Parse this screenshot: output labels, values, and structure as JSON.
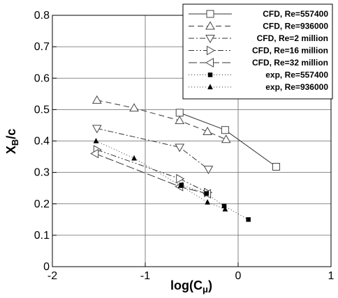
{
  "chart_data": {
    "type": "line",
    "xlabel": "log(C",
    "xlabel_sub": "μ",
    "xlabel_close": ")",
    "ylabel": "X",
    "ylabel_sub": "B",
    "ylabel_rest": "/c",
    "xlim": [
      -2,
      1
    ],
    "ylim": [
      0,
      0.8
    ],
    "xticks": [
      -2,
      -1,
      0,
      1
    ],
    "yticks": [
      0,
      0.1,
      0.2,
      0.3,
      0.4,
      0.5,
      0.6,
      0.7,
      0.8
    ],
    "grid": true,
    "legend_position": "top-right",
    "series": [
      {
        "name": "CFD, Re=557400",
        "marker": "square",
        "dash": "",
        "x": [
          -0.63,
          -0.14,
          0.41
        ],
        "y": [
          0.49,
          0.435,
          0.318
        ]
      },
      {
        "name": "CFD, Re=936000",
        "marker": "triangle-up",
        "dash": "8,5",
        "x": [
          -1.52,
          -1.12,
          -0.63,
          -0.33,
          -0.13
        ],
        "y": [
          0.53,
          0.505,
          0.465,
          0.43,
          0.405
        ]
      },
      {
        "name": "CFD, Re=2 million",
        "marker": "triangle-down",
        "dash": "8,3,2,3",
        "x": [
          -1.52,
          -0.63,
          -0.32
        ],
        "y": [
          0.44,
          0.38,
          0.31
        ]
      },
      {
        "name": "CFD, Re=16 million",
        "marker": "triangle-right",
        "dash": "8,3,2,3,2,3",
        "x": [
          -1.52,
          -0.63,
          -0.33
        ],
        "y": [
          0.372,
          0.28,
          0.236
        ]
      },
      {
        "name": "CFD, Re=32 million",
        "marker": "triangle-left",
        "dash": "12,4",
        "x": [
          -1.54,
          -0.63,
          -0.33
        ],
        "y": [
          0.36,
          0.255,
          0.232
        ]
      },
      {
        "name": "exp, Re=557400",
        "marker": "filled-square",
        "dash": "1,3",
        "x": [
          -0.61,
          -0.34,
          -0.15,
          0.11
        ],
        "y": [
          0.26,
          0.233,
          0.193,
          0.15
        ]
      },
      {
        "name": "exp, Re=936000",
        "marker": "filled-triangle",
        "dash": "1,3",
        "x": [
          -1.53,
          -1.12,
          -0.62,
          -0.33,
          -0.14
        ],
        "y": [
          0.4,
          0.345,
          0.258,
          0.205,
          0.183
        ]
      }
    ]
  }
}
